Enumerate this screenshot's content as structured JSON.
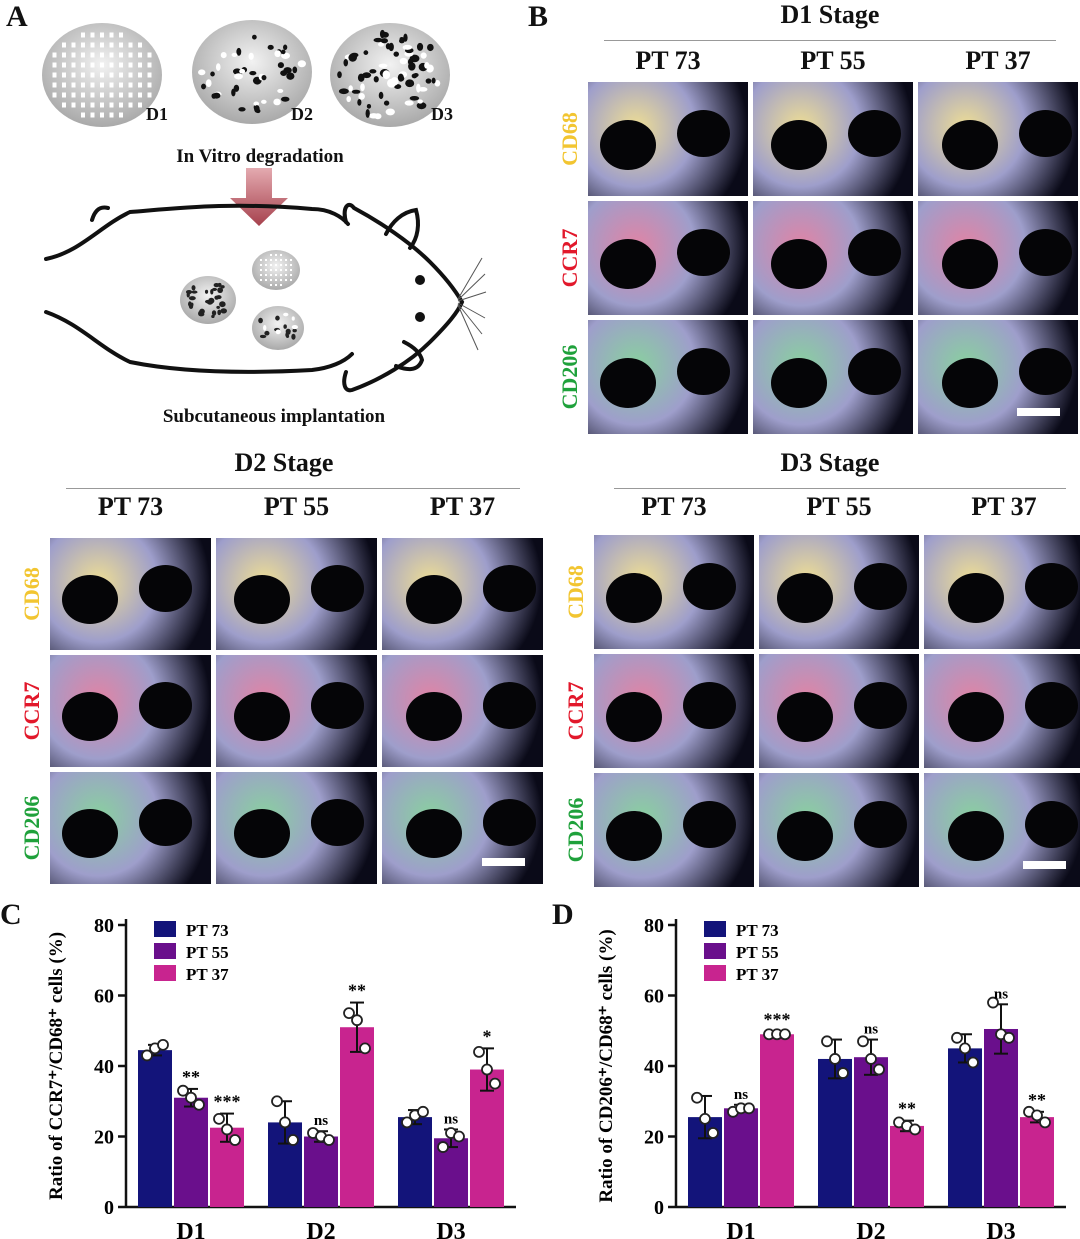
{
  "panels": {
    "a": "A",
    "b": "B",
    "c": "C",
    "d": "D"
  },
  "panel_a": {
    "discs": [
      "D1",
      "D2",
      "D3"
    ],
    "step1": "In Vitro degradation",
    "step2": "Subcutaneous implantation"
  },
  "stages": {
    "d1": "D1 Stage",
    "d2": "D2 Stage",
    "d3": "D3 Stage"
  },
  "columns": [
    "PT 73",
    "PT 55",
    "PT 37"
  ],
  "markers": [
    {
      "name": "CD68",
      "color": "#f2c531"
    },
    {
      "name": "CCR7",
      "color": "#e2182b"
    },
    {
      "name": "CD206",
      "color": "#1fa13b"
    }
  ],
  "chart_data": [
    {
      "type": "bar",
      "ylabel": "Ratio of CCR7⁺/CD68⁺ cells (%)",
      "ylim": [
        0,
        80
      ],
      "yticks": [
        "0",
        "20",
        "40",
        "60",
        "80"
      ],
      "categories": [
        "D1",
        "D2",
        "D3"
      ],
      "series": [
        {
          "name": "PT 73",
          "color": "#13147a",
          "values": [
            44.5,
            24,
            25.5
          ],
          "err": [
            1.5,
            6,
            2
          ],
          "points": [
            [
              43,
              45,
              46
            ],
            [
              30,
              24,
              19
            ],
            [
              24,
              26,
              27
            ]
          ],
          "sig": [
            "",
            "",
            ""
          ]
        },
        {
          "name": "PT 55",
          "color": "#6a0f8c",
          "values": [
            31,
            20,
            19.5
          ],
          "err": [
            2.5,
            1.5,
            2.5
          ],
          "points": [
            [
              33,
              31,
              29
            ],
            [
              21,
              20,
              19
            ],
            [
              17,
              21,
              20
            ]
          ],
          "sig": [
            "**",
            "ns",
            "ns"
          ]
        },
        {
          "name": "PT 37",
          "color": "#c8248f",
          "values": [
            22.5,
            51,
            39
          ],
          "err": [
            4,
            7,
            6
          ],
          "points": [
            [
              25,
              22,
              19
            ],
            [
              55,
              53,
              45
            ],
            [
              44,
              39,
              35
            ]
          ],
          "sig": [
            "***",
            "**",
            "*"
          ]
        }
      ],
      "legend": "top-left"
    },
    {
      "type": "bar",
      "ylabel": "Ratio of CD206⁺/CD68⁺ cells (%)",
      "ylim": [
        0,
        80
      ],
      "yticks": [
        "0",
        "20",
        "40",
        "60",
        "80"
      ],
      "categories": [
        "D1",
        "D2",
        "D3"
      ],
      "series": [
        {
          "name": "PT 73",
          "color": "#13147a",
          "values": [
            25.5,
            42,
            45
          ],
          "err": [
            6,
            5.5,
            4
          ],
          "points": [
            [
              31,
              25,
              21
            ],
            [
              47,
              42,
              38
            ],
            [
              48,
              45,
              41
            ]
          ],
          "sig": [
            "",
            "",
            ""
          ]
        },
        {
          "name": "PT 55",
          "color": "#6a0f8c",
          "values": [
            28,
            42.5,
            50.5
          ],
          "err": [
            1,
            5,
            7
          ],
          "points": [
            [
              27,
              28,
              28
            ],
            [
              47,
              42,
              39
            ],
            [
              58,
              49,
              48
            ]
          ],
          "sig": [
            "ns",
            "ns",
            "ns"
          ]
        },
        {
          "name": "PT 37",
          "color": "#c8248f",
          "values": [
            49,
            23,
            25.5
          ],
          "err": [
            0.8,
            1.5,
            1.5
          ],
          "points": [
            [
              49,
              49,
              49
            ],
            [
              24,
              23,
              22
            ],
            [
              27,
              26,
              24
            ]
          ],
          "sig": [
            "***",
            "**",
            "**"
          ]
        }
      ],
      "legend": "top-left"
    }
  ]
}
